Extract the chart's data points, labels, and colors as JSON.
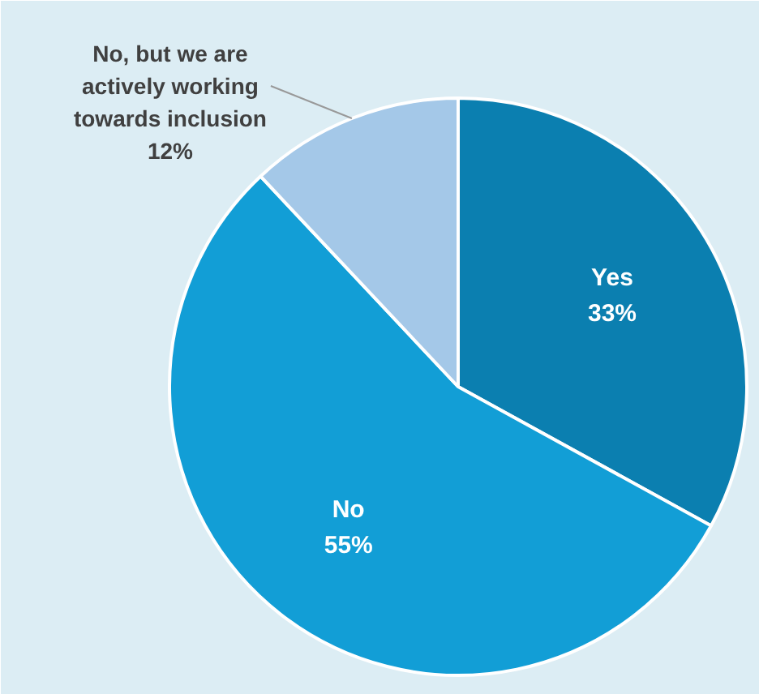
{
  "chart_data": {
    "type": "pie",
    "categories": [
      "Yes",
      "No",
      "No, but we are actively working towards inclusion"
    ],
    "values": [
      33,
      55,
      12
    ],
    "colors": [
      "#0b7fb0",
      "#129ed6",
      "#a4c8e8"
    ],
    "value_labels": [
      "33%",
      "55%",
      "12%"
    ]
  }
}
